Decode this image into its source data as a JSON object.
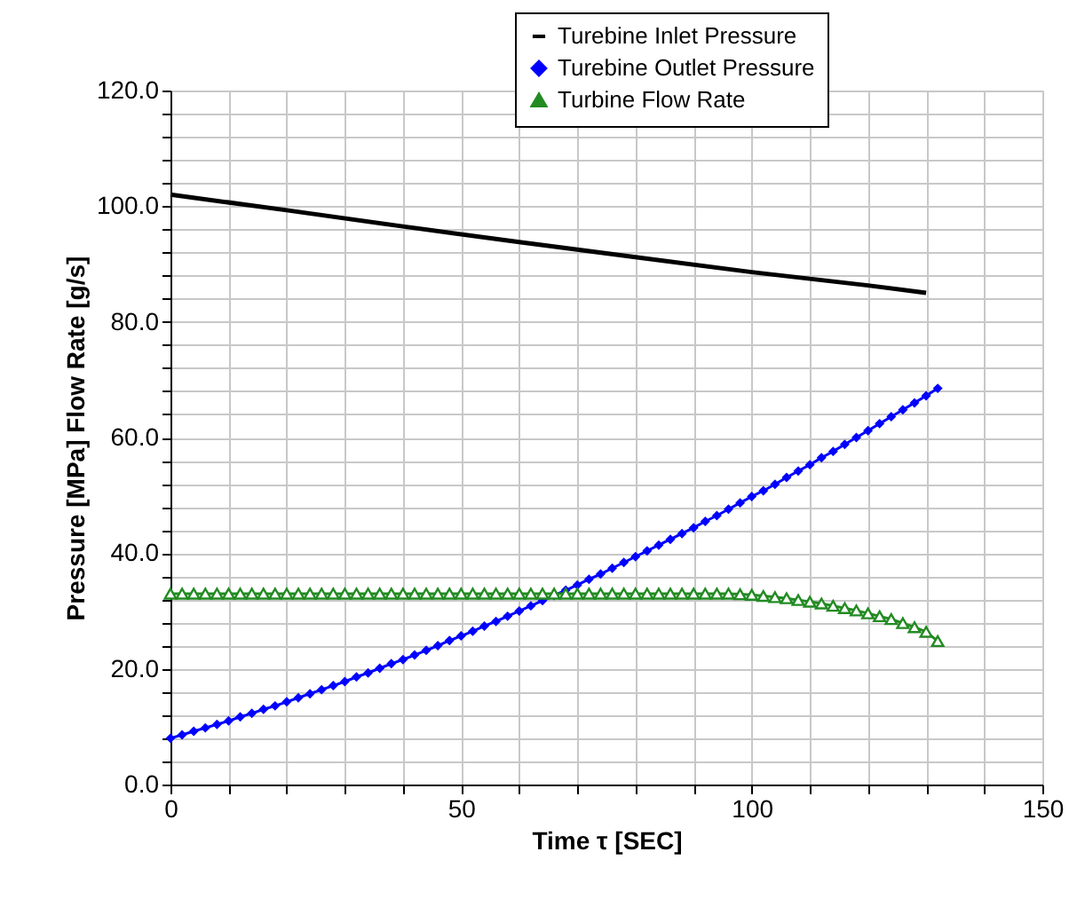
{
  "chart_data": {
    "type": "line",
    "xlabel": "Time   τ   [SEC]",
    "ylabel": "Pressure   [MPa]   Flow Rate   [g/s]",
    "xlim": [
      0,
      150
    ],
    "xticks": [
      0,
      {
        "value": 10,
        "label": null
      },
      {
        "value": 20,
        "label": null
      },
      {
        "value": 30,
        "label": null
      },
      {
        "value": 40,
        "label": null
      },
      50,
      {
        "value": 60,
        "label": null
      },
      {
        "value": 70,
        "label": null
      },
      {
        "value": 80,
        "label": null
      },
      {
        "value": 90,
        "label": null
      },
      100,
      {
        "value": 110,
        "label": null
      },
      {
        "value": 120,
        "label": null
      },
      {
        "value": 130,
        "label": null
      },
      {
        "value": 140,
        "label": null
      },
      150
    ],
    "ylim": [
      0,
      120
    ],
    "yticks": [
      {
        "value": 0,
        "label": "0.0"
      },
      {
        "value": 4,
        "label": null
      },
      {
        "value": 8,
        "label": null
      },
      {
        "value": 12,
        "label": null
      },
      {
        "value": 16,
        "label": null
      },
      {
        "value": 20,
        "label": "20.0"
      },
      {
        "value": 24,
        "label": null
      },
      {
        "value": 28,
        "label": null
      },
      {
        "value": 32,
        "label": null
      },
      {
        "value": 36,
        "label": null
      },
      {
        "value": 40,
        "label": "40.0"
      },
      {
        "value": 44,
        "label": null
      },
      {
        "value": 48,
        "label": null
      },
      {
        "value": 52,
        "label": null
      },
      {
        "value": 56,
        "label": null
      },
      {
        "value": 60,
        "label": "60.0"
      },
      {
        "value": 64,
        "label": null
      },
      {
        "value": 68,
        "label": null
      },
      {
        "value": 72,
        "label": null
      },
      {
        "value": 76,
        "label": null
      },
      {
        "value": 80,
        "label": "80.0"
      },
      {
        "value": 84,
        "label": null
      },
      {
        "value": 88,
        "label": null
      },
      {
        "value": 92,
        "label": null
      },
      {
        "value": 96,
        "label": null
      },
      {
        "value": 100,
        "label": "100.0"
      },
      {
        "value": 104,
        "label": null
      },
      {
        "value": 108,
        "label": null
      },
      {
        "value": 112,
        "label": null
      },
      {
        "value": 116,
        "label": null
      },
      {
        "value": 120,
        "label": "120.0"
      }
    ],
    "grid": true,
    "legend": "top right",
    "series": [
      {
        "name": "Turebine Inlet Pressure",
        "color": "#000000",
        "marker": "none",
        "x": [
          0,
          20,
          40,
          60,
          80,
          100,
          120,
          130
        ],
        "values": [
          102,
          99.3,
          96.5,
          93.8,
          91.2,
          88.6,
          86.3,
          85.0
        ]
      },
      {
        "name": "Turebine Outlet Pressure",
        "color": "#0000ff",
        "marker": "diamond",
        "x": [
          0,
          2,
          4,
          6,
          8,
          10,
          12,
          14,
          16,
          18,
          20,
          22,
          24,
          26,
          28,
          30,
          32,
          34,
          36,
          38,
          40,
          42,
          44,
          46,
          48,
          50,
          52,
          54,
          56,
          58,
          60,
          62,
          64,
          66,
          68,
          70,
          72,
          74,
          76,
          78,
          80,
          82,
          84,
          86,
          88,
          90,
          92,
          94,
          96,
          98,
          100,
          102,
          104,
          106,
          108,
          110,
          112,
          114,
          116,
          118,
          120,
          122,
          124,
          126,
          128,
          130,
          132
        ],
        "values": [
          8.0,
          8.6,
          9.2,
          9.8,
          10.4,
          11.0,
          11.7,
          12.3,
          13.0,
          13.6,
          14.3,
          15.0,
          15.7,
          16.4,
          17.1,
          17.8,
          18.6,
          19.3,
          20.1,
          20.9,
          21.6,
          22.4,
          23.2,
          24.0,
          24.9,
          25.7,
          26.5,
          27.4,
          28.2,
          29.1,
          30.0,
          30.9,
          31.8,
          32.7,
          33.6,
          34.5,
          35.5,
          36.4,
          37.4,
          38.4,
          39.4,
          40.4,
          41.4,
          42.4,
          43.4,
          44.4,
          45.5,
          46.5,
          47.6,
          48.7,
          49.8,
          50.8,
          51.9,
          53.1,
          54.2,
          55.3,
          56.5,
          57.6,
          58.8,
          60.0,
          61.2,
          62.4,
          63.6,
          64.8,
          66.0,
          67.2,
          68.5
        ]
      },
      {
        "name": "Turbine Flow Rate",
        "color": "#228b22",
        "marker": "triangle",
        "x": [
          0,
          2,
          4,
          6,
          8,
          10,
          12,
          14,
          16,
          18,
          20,
          22,
          24,
          26,
          28,
          30,
          32,
          34,
          36,
          38,
          40,
          42,
          44,
          46,
          48,
          50,
          52,
          54,
          56,
          58,
          60,
          62,
          64,
          66,
          68,
          70,
          72,
          74,
          76,
          78,
          80,
          82,
          84,
          86,
          88,
          90,
          92,
          94,
          96,
          98,
          100,
          102,
          104,
          106,
          108,
          110,
          112,
          114,
          116,
          118,
          120,
          122,
          124,
          126,
          128,
          130,
          132
        ],
        "values": [
          33,
          33,
          33,
          33,
          33,
          33,
          33,
          33,
          33,
          33,
          33,
          33,
          33,
          33,
          33,
          33,
          33,
          33,
          33,
          33,
          33,
          33,
          33,
          33,
          33,
          33,
          33,
          33,
          33,
          33,
          33,
          33,
          33,
          33,
          33,
          33,
          33,
          33,
          33,
          33,
          33,
          33,
          33,
          33,
          33,
          33,
          33,
          33,
          33,
          32.9,
          32.8,
          32.6,
          32.4,
          32.2,
          31.9,
          31.6,
          31.3,
          30.9,
          30.5,
          30.1,
          29.6,
          29.1,
          28.6,
          27.9,
          27.2,
          26.4,
          24.8
        ]
      }
    ]
  }
}
